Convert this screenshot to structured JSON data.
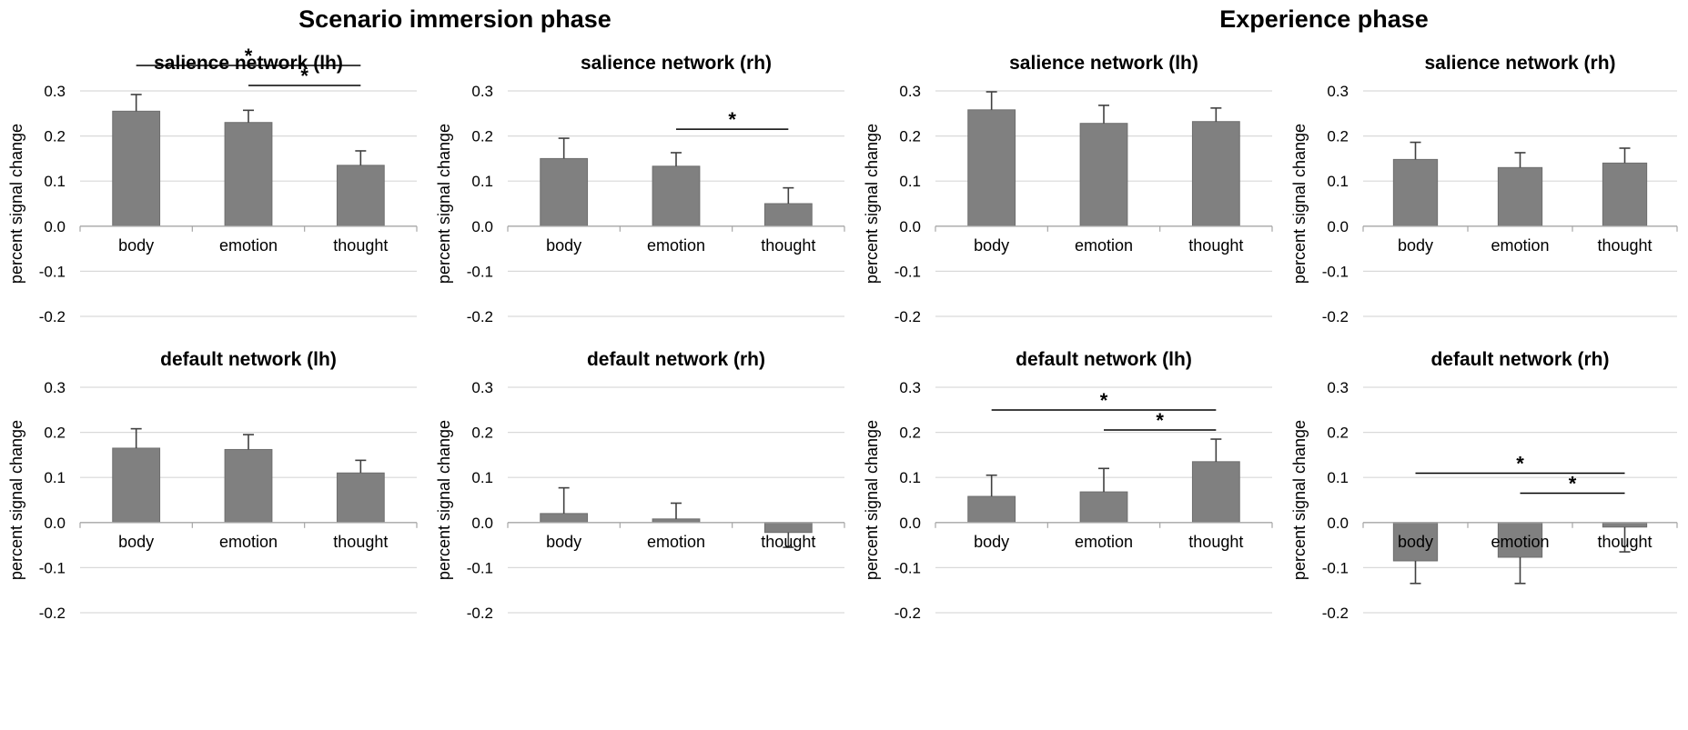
{
  "phases": [
    "Scenario immersion phase",
    "Experience phase"
  ],
  "chart_data": [
    {
      "type": "bar",
      "phase": "Scenario immersion phase",
      "title": "salience network (lh)",
      "categories": [
        "body",
        "emotion",
        "thought"
      ],
      "values": [
        0.255,
        0.23,
        0.135
      ],
      "errors": [
        0.037,
        0.027,
        0.032
      ],
      "ylabel": "percent signal change",
      "ylim": [
        -0.2,
        0.3
      ],
      "yticks": [
        "0.3",
        "0.2",
        "0.1",
        "0.0",
        "-0.1",
        "-0.2"
      ],
      "significance": [
        {
          "from": 0,
          "to": 2,
          "label": "*"
        },
        {
          "from": 1,
          "to": 2,
          "label": "*"
        }
      ]
    },
    {
      "type": "bar",
      "phase": "Scenario immersion phase",
      "title": "salience network (rh)",
      "categories": [
        "body",
        "emotion",
        "thought"
      ],
      "values": [
        0.15,
        0.133,
        0.05
      ],
      "errors": [
        0.045,
        0.03,
        0.035
      ],
      "ylabel": "percent signal change",
      "ylim": [
        -0.2,
        0.3
      ],
      "yticks": [
        "0.3",
        "0.2",
        "0.1",
        "0.0",
        "-0.1",
        "-0.2"
      ],
      "significance": [
        {
          "from": 1,
          "to": 2,
          "label": "*"
        }
      ]
    },
    {
      "type": "bar",
      "phase": "Experience phase",
      "title": "salience network (lh)",
      "categories": [
        "body",
        "emotion",
        "thought"
      ],
      "values": [
        0.258,
        0.228,
        0.232
      ],
      "errors": [
        0.04,
        0.04,
        0.03
      ],
      "ylabel": "percent signal change",
      "ylim": [
        -0.2,
        0.3
      ],
      "yticks": [
        "0.3",
        "0.2",
        "0.1",
        "0.0",
        "-0.1",
        "-0.2"
      ],
      "significance": []
    },
    {
      "type": "bar",
      "phase": "Experience phase",
      "title": "salience network (rh)",
      "categories": [
        "body",
        "emotion",
        "thought"
      ],
      "values": [
        0.148,
        0.13,
        0.14
      ],
      "errors": [
        0.038,
        0.033,
        0.033
      ],
      "ylabel": "percent signal change",
      "ylim": [
        -0.2,
        0.3
      ],
      "yticks": [
        "0.3",
        "0.2",
        "0.1",
        "0.0",
        "-0.1",
        "-0.2"
      ],
      "significance": []
    },
    {
      "type": "bar",
      "phase": "Scenario immersion phase",
      "title": "default network (lh)",
      "categories": [
        "body",
        "emotion",
        "thought"
      ],
      "values": [
        0.165,
        0.162,
        0.11
      ],
      "errors": [
        0.043,
        0.033,
        0.028
      ],
      "ylabel": "percent signal change",
      "ylim": [
        -0.2,
        0.3
      ],
      "yticks": [
        "0.3",
        "0.2",
        "0.1",
        "0.0",
        "-0.1",
        "-0.2"
      ],
      "significance": []
    },
    {
      "type": "bar",
      "phase": "Scenario immersion phase",
      "title": "default network (rh)",
      "categories": [
        "body",
        "emotion",
        "thought"
      ],
      "values": [
        0.02,
        0.008,
        -0.022
      ],
      "errors": [
        0.057,
        0.035,
        0.033
      ],
      "ylabel": "percent signal change",
      "ylim": [
        -0.2,
        0.3
      ],
      "yticks": [
        "0.3",
        "0.2",
        "0.1",
        "0.0",
        "-0.1",
        "-0.2"
      ],
      "significance": []
    },
    {
      "type": "bar",
      "phase": "Experience phase",
      "title": "default network (lh)",
      "categories": [
        "body",
        "emotion",
        "thought"
      ],
      "values": [
        0.058,
        0.068,
        0.135
      ],
      "errors": [
        0.047,
        0.052,
        0.05
      ],
      "ylabel": "percent signal change",
      "ylim": [
        -0.2,
        0.3
      ],
      "yticks": [
        "0.3",
        "0.2",
        "0.1",
        "0.0",
        "-0.1",
        "-0.2"
      ],
      "significance": [
        {
          "from": 0,
          "to": 2,
          "label": "*"
        },
        {
          "from": 1,
          "to": 2,
          "label": "*"
        }
      ]
    },
    {
      "type": "bar",
      "phase": "Experience phase",
      "title": "default network (rh)",
      "categories": [
        "body",
        "emotion",
        "thought"
      ],
      "values": [
        -0.085,
        -0.077,
        -0.01
      ],
      "errors": [
        0.05,
        0.058,
        0.055
      ],
      "ylabel": "percent signal change",
      "ylim": [
        -0.2,
        0.3
      ],
      "yticks": [
        "0.3",
        "0.2",
        "0.1",
        "0.0",
        "-0.1",
        "-0.2"
      ],
      "significance": [
        {
          "from": 0,
          "to": 2,
          "label": "*"
        },
        {
          "from": 1,
          "to": 2,
          "label": "*"
        }
      ]
    }
  ],
  "colors": {
    "bar": "#808080",
    "bar_edge": "#6e6e6e",
    "grid": "#d9d9d9",
    "axis": "#a6a6a6",
    "error": "#404040",
    "bracket": "#000000"
  }
}
